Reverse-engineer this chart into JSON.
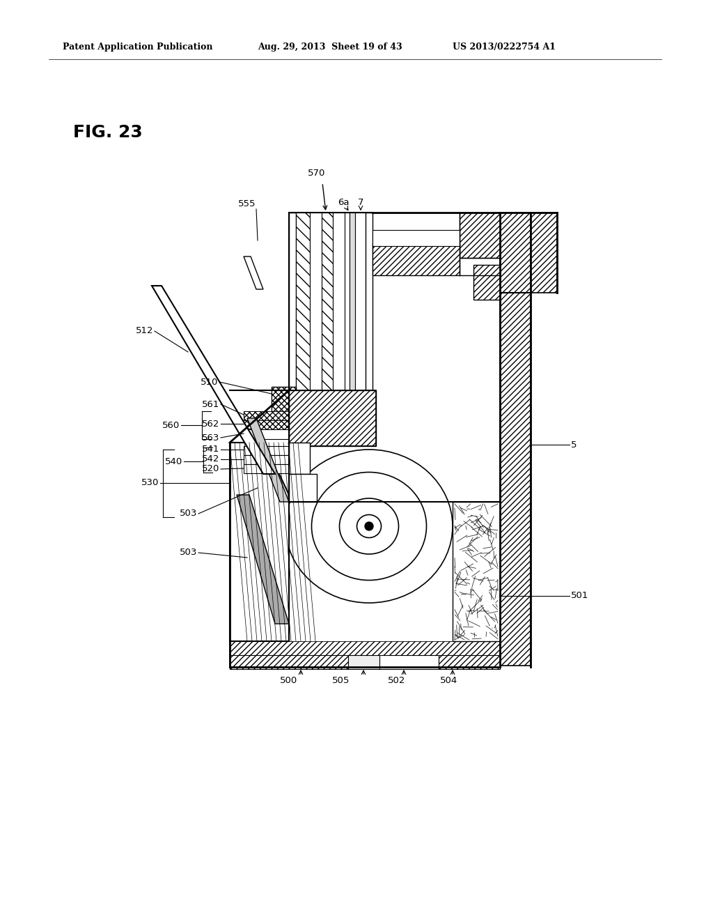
{
  "bg_color": "#ffffff",
  "title": "FIG. 23",
  "header_left": "Patent Application Publication",
  "header_mid": "Aug. 29, 2013  Sheet 19 of 43",
  "header_right": "US 2013/0222754 A1",
  "fig_width": 10.24,
  "fig_height": 13.2,
  "dpi": 100
}
